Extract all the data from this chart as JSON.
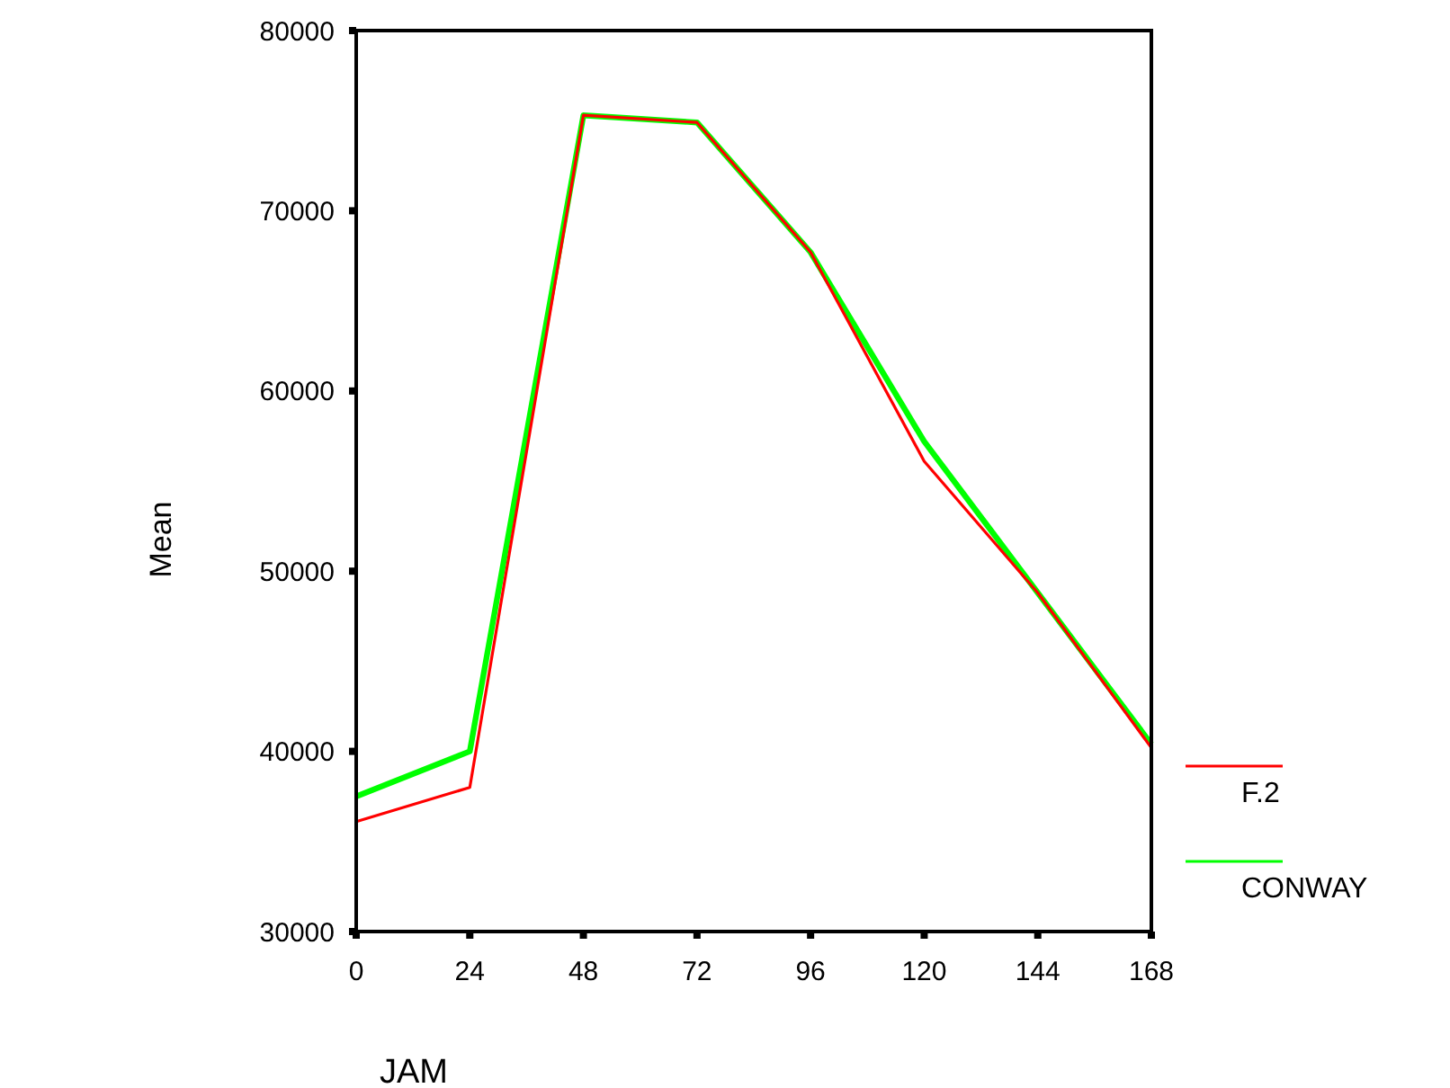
{
  "chart_data": {
    "type": "line",
    "xlabel": "JAM",
    "ylabel": "Mean",
    "x": [
      0,
      24,
      48,
      72,
      96,
      120,
      144,
      168
    ],
    "series": [
      {
        "name": "F.2",
        "color": "#ff0000",
        "values": [
          36100,
          38000,
          75300,
          74900,
          67700,
          56100,
          48800,
          40200
        ]
      },
      {
        "name": "CONWAY",
        "color": "#00ff00",
        "values": [
          37500,
          40000,
          75300,
          74900,
          67700,
          57200,
          48800,
          40400
        ]
      }
    ],
    "xlim": [
      0,
      168
    ],
    "xticks": [
      0,
      24,
      48,
      72,
      96,
      120,
      144,
      168
    ],
    "ylim": [
      30000,
      80000
    ],
    "yticks": [
      30000,
      40000,
      50000,
      60000,
      70000,
      80000
    ],
    "grid": false,
    "legend": "right",
    "marker": "none",
    "line_style": "solid"
  }
}
